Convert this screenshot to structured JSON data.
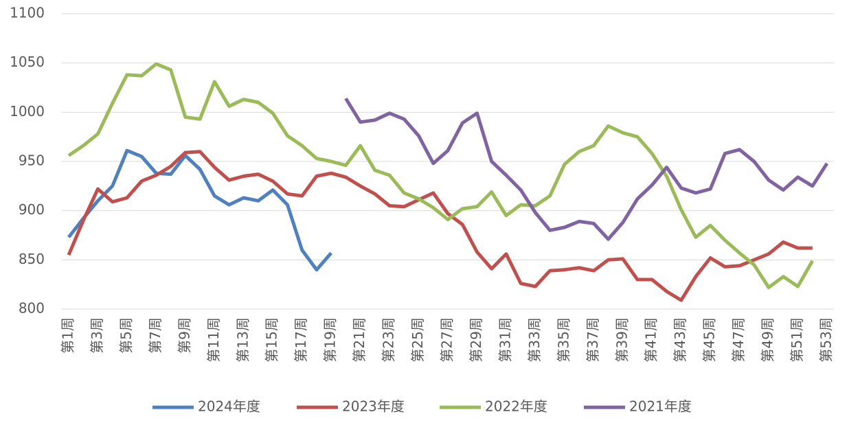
{
  "chart_data": {
    "type": "line",
    "categories": [
      "第1周",
      null,
      "第3周",
      null,
      "第5周",
      null,
      "第7周",
      null,
      "第9周",
      null,
      "第11周",
      null,
      "第13周",
      null,
      "第15周",
      null,
      "第17周",
      null,
      "第19周",
      null,
      "第21周",
      null,
      "第23周",
      null,
      "第25周",
      null,
      "第27周",
      null,
      "第29周",
      null,
      "第31周",
      null,
      "第33周",
      null,
      "第35周",
      null,
      "第37周",
      null,
      "第39周",
      null,
      "第41周",
      null,
      "第43周",
      null,
      "第45周",
      null,
      "第47周",
      null,
      "第49周",
      null,
      "第51周",
      null,
      "第53周"
    ],
    "series": [
      {
        "name": "2024年度",
        "color": "#4e81bd",
        "values": [
          873,
          892,
          910,
          925,
          961,
          955,
          938,
          937,
          956,
          942,
          915,
          906,
          913,
          910,
          921,
          906,
          860,
          840,
          857,
          null,
          null,
          null,
          null,
          null,
          null,
          null,
          null,
          null,
          null,
          null,
          null,
          null,
          null,
          null,
          null,
          null,
          null,
          null,
          null,
          null,
          null,
          null,
          null,
          null,
          null,
          null,
          null,
          null,
          null,
          null,
          null,
          null,
          null
        ]
      },
      {
        "name": "2023年度",
        "color": "#c0504d",
        "values": [
          855,
          890,
          922,
          909,
          913,
          930,
          936,
          945,
          959,
          960,
          944,
          931,
          935,
          937,
          930,
          917,
          915,
          935,
          938,
          934,
          925,
          917,
          905,
          904,
          911,
          918,
          897,
          886,
          858,
          841,
          856,
          826,
          823,
          839,
          840,
          842,
          839,
          850,
          851,
          830,
          830,
          818,
          809,
          833,
          852,
          843,
          844,
          850,
          856,
          868,
          862,
          862,
          null
        ]
      },
      {
        "name": "2022年度",
        "color": "#9bbb59",
        "values": [
          956,
          966,
          978,
          1009,
          1038,
          1037,
          1049,
          1043,
          995,
          993,
          1031,
          1006,
          1013,
          1010,
          999,
          976,
          966,
          953,
          950,
          946,
          966,
          941,
          936,
          918,
          912,
          903,
          891,
          902,
          904,
          919,
          895,
          906,
          905,
          915,
          947,
          960,
          966,
          986,
          979,
          975,
          958,
          935,
          901,
          873,
          885,
          870,
          857,
          845,
          822,
          833,
          823,
          849,
          null
        ]
      },
      {
        "name": "2021年度",
        "color": "#8064a2",
        "values": [
          null,
          null,
          null,
          null,
          null,
          null,
          null,
          null,
          null,
          null,
          null,
          null,
          null,
          null,
          null,
          null,
          null,
          null,
          null,
          1014,
          990,
          992,
          999,
          993,
          976,
          948,
          961,
          989,
          999,
          950,
          936,
          921,
          898,
          880,
          883,
          889,
          887,
          871,
          888,
          912,
          926,
          944,
          923,
          918,
          922,
          958,
          962,
          950,
          931,
          921,
          934,
          925,
          948
        ]
      }
    ],
    "ylim": [
      800,
      1100
    ],
    "yticks": [
      800,
      850,
      900,
      950,
      1000,
      1050,
      1100
    ],
    "grid": true,
    "legend": "bottom"
  }
}
